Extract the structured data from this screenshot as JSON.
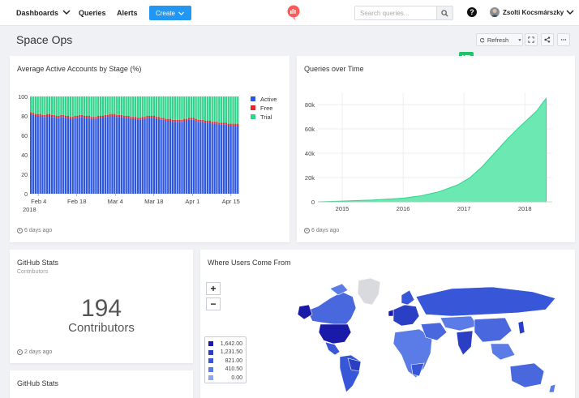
{
  "nav": {
    "dashboards": "Dashboards",
    "queries": "Queries",
    "alerts": "Alerts",
    "create": "Create",
    "search_placeholder": "Search queries...",
    "help": "?",
    "user": "Zsolti Kocsmárszky"
  },
  "page": {
    "title": "Space Ops",
    "refresh": "Refresh",
    "translate_badge": "译"
  },
  "colors": {
    "active": "#2c55e0",
    "free": "#e3262d",
    "trial": "#2fd38a",
    "area_fill": "#6ce9b3",
    "area_line": "#2fd38a",
    "brand": "#2196f3"
  },
  "widgets": {
    "stage": {
      "title": "Average Active Accounts by Stage (%)",
      "updated": "6 days ago",
      "legend": [
        "Active",
        "Free",
        "Trial"
      ],
      "y_ticks": [
        "0",
        "20",
        "40",
        "60",
        "80",
        "100"
      ],
      "x_ticks": [
        "Feb 4",
        "Feb 18",
        "Mar 4",
        "Mar 18",
        "Apr 1",
        "Apr 15"
      ],
      "x_year": "2018"
    },
    "queries": {
      "title": "Queries over Time",
      "updated": "6 days ago",
      "y_ticks": [
        "0",
        "20k",
        "40k",
        "60k",
        "80k"
      ],
      "x_ticks": [
        "2015",
        "2016",
        "2017",
        "2018"
      ]
    },
    "github1": {
      "title": "GitHub Stats",
      "subtitle": "Contributors",
      "value": "194",
      "label": "Contributors",
      "updated": "2 days ago"
    },
    "github2": {
      "title": "GitHub Stats"
    },
    "map": {
      "title": "Where Users Come From",
      "zoom_in": "+",
      "zoom_out": "−",
      "legend": [
        "1,642.00",
        "1,231.50",
        "821.00",
        "410.50",
        "0.00"
      ],
      "legend_colors": [
        "#1a1aa8",
        "#2a3fc4",
        "#3757d8",
        "#5b7be6",
        "#8fa6f0"
      ]
    }
  },
  "chart_data": [
    {
      "type": "bar",
      "title": "Average Active Accounts by Stage (%)",
      "xlabel": "",
      "ylabel": "",
      "ylim": [
        0,
        100
      ],
      "stacked": true,
      "x_range": [
        "2018-02-01",
        "2018-04-18"
      ],
      "legend_position": "right",
      "series": [
        {
          "name": "Active",
          "values": [
            82,
            81,
            80,
            80,
            80,
            79,
            79,
            80,
            80,
            79,
            79,
            78,
            78,
            79,
            79,
            78,
            78,
            77,
            77,
            78,
            78,
            79,
            79,
            78,
            78,
            78,
            77,
            77,
            77,
            78,
            78,
            78,
            79,
            79,
            80,
            80,
            80,
            79,
            79,
            79,
            78,
            78,
            78,
            77,
            77,
            77,
            76,
            76,
            77,
            77,
            78,
            78,
            78,
            78,
            77,
            77,
            76,
            76,
            75,
            75,
            75,
            74,
            74,
            74,
            74,
            74,
            75,
            75,
            76,
            76,
            76,
            75,
            74,
            74,
            74,
            73,
            73,
            73,
            72,
            72,
            72,
            71,
            71,
            71,
            71,
            70,
            70,
            70,
            70,
            70
          ]
        },
        {
          "name": "Free",
          "values": [
            2,
            2,
            2,
            2,
            2,
            2,
            2,
            2,
            2,
            2,
            2,
            2,
            2,
            2,
            2,
            2,
            2,
            2,
            2,
            2,
            2,
            2,
            2,
            2,
            2,
            2,
            2,
            2,
            2,
            2,
            2,
            2,
            2,
            2,
            2,
            2,
            2,
            2,
            2,
            2,
            2,
            2,
            2,
            2,
            2,
            2,
            2,
            2,
            2,
            2,
            2,
            2,
            2,
            2,
            2,
            2,
            2,
            2,
            2,
            2,
            2,
            2,
            2,
            2,
            2,
            2,
            2,
            2,
            2,
            2,
            2,
            2,
            2,
            2,
            2,
            2,
            2,
            2,
            2,
            2,
            2,
            2,
            2,
            2,
            2,
            2,
            2,
            2,
            2,
            2
          ]
        },
        {
          "name": "Trial",
          "values": [
            16,
            17,
            18,
            18,
            18,
            19,
            19,
            18,
            18,
            19,
            19,
            20,
            20,
            19,
            19,
            20,
            20,
            21,
            21,
            20,
            20,
            19,
            19,
            20,
            20,
            20,
            21,
            21,
            21,
            20,
            20,
            20,
            19,
            19,
            18,
            18,
            18,
            19,
            19,
            19,
            20,
            20,
            20,
            21,
            21,
            21,
            22,
            22,
            21,
            21,
            20,
            20,
            20,
            20,
            21,
            21,
            22,
            22,
            23,
            23,
            23,
            24,
            24,
            24,
            24,
            24,
            23,
            23,
            22,
            22,
            22,
            23,
            24,
            24,
            24,
            25,
            25,
            25,
            26,
            26,
            26,
            27,
            27,
            27,
            27,
            28,
            28,
            28,
            28,
            28
          ]
        }
      ]
    },
    {
      "type": "area",
      "title": "Queries over Time",
      "xlabel": "",
      "ylabel": "",
      "ylim": [
        0,
        90000
      ],
      "x_range": [
        2014.6,
        2018.45
      ],
      "series": [
        {
          "name": "Queries",
          "x": [
            2014.6,
            2015.0,
            2015.5,
            2016.0,
            2016.3,
            2016.6,
            2016.9,
            2017.1,
            2017.3,
            2017.5,
            2017.7,
            2017.9,
            2018.05,
            2018.2,
            2018.3,
            2018.35
          ],
          "values": [
            0,
            600,
            1500,
            3000,
            5000,
            8500,
            14000,
            20000,
            29000,
            40000,
            51000,
            61000,
            68000,
            75000,
            82000,
            85000
          ]
        }
      ]
    }
  ]
}
